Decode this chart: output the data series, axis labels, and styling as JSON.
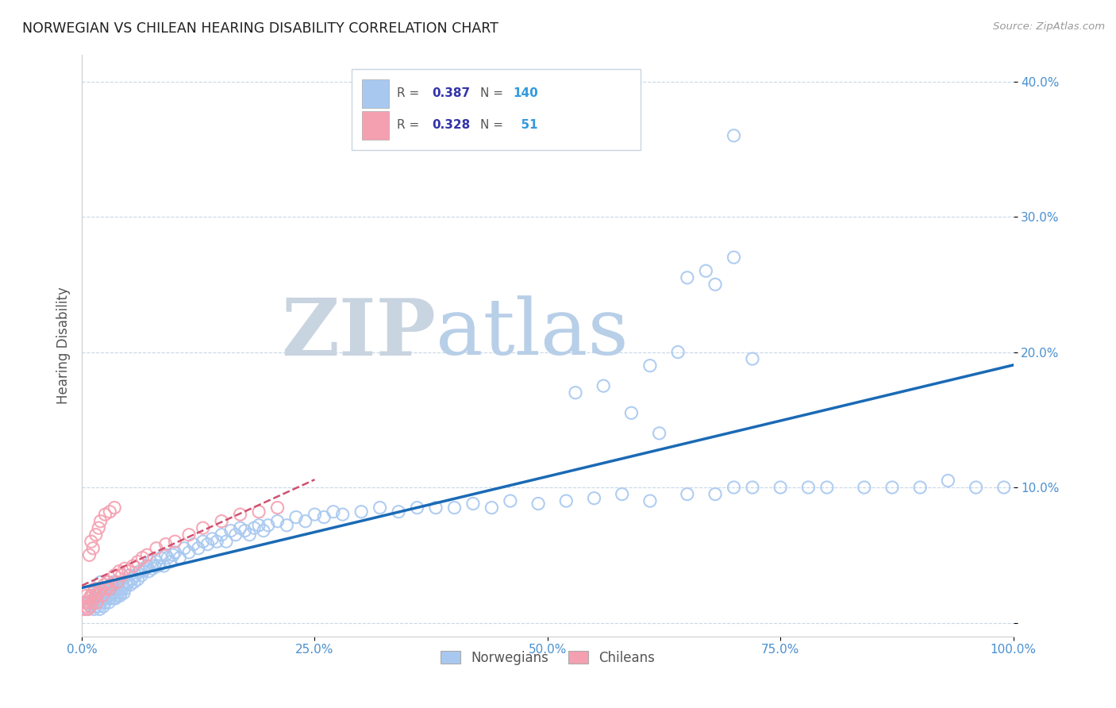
{
  "title": "NORWEGIAN VS CHILEAN HEARING DISABILITY CORRELATION CHART",
  "source": "Source: ZipAtlas.com",
  "ylabel": "Hearing Disability",
  "xlim": [
    0.0,
    1.0
  ],
  "ylim": [
    -0.01,
    0.42
  ],
  "yticks": [
    0.0,
    0.1,
    0.2,
    0.3,
    0.4
  ],
  "ytick_labels": [
    "",
    "10.0%",
    "20.0%",
    "30.0%",
    "40.0%"
  ],
  "xticks": [
    0.0,
    0.25,
    0.5,
    0.75,
    1.0
  ],
  "xtick_labels": [
    "0.0%",
    "25.0%",
    "50.0%",
    "75.0%",
    "100.0%"
  ],
  "norwegian_R": 0.387,
  "norwegian_N": 140,
  "chilean_R": 0.328,
  "chilean_N": 51,
  "norwegian_color": "#a8c8f0",
  "chilean_color": "#f5a0b0",
  "trend_norwegian_color": "#1a6ab5",
  "trend_chilean_color": "#d05070",
  "background_color": "#ffffff",
  "grid_color": "#c8d8e8",
  "title_color": "#202020",
  "axis_label_color": "#555555",
  "tick_label_color": "#4a90d0",
  "legend_R_color": "#3333aa",
  "legend_N_color": "#3399dd",
  "watermark_zip": "#c8d4e0",
  "watermark_atlas": "#b0cce0",
  "nor_x": [
    0.005,
    0.008,
    0.01,
    0.01,
    0.012,
    0.013,
    0.015,
    0.015,
    0.016,
    0.017,
    0.018,
    0.018,
    0.019,
    0.02,
    0.02,
    0.02,
    0.021,
    0.022,
    0.023,
    0.023,
    0.024,
    0.025,
    0.025,
    0.026,
    0.027,
    0.028,
    0.029,
    0.03,
    0.03,
    0.031,
    0.032,
    0.033,
    0.034,
    0.034,
    0.035,
    0.036,
    0.037,
    0.038,
    0.039,
    0.04,
    0.041,
    0.042,
    0.043,
    0.044,
    0.045,
    0.046,
    0.047,
    0.048,
    0.05,
    0.051,
    0.052,
    0.054,
    0.056,
    0.058,
    0.06,
    0.062,
    0.064,
    0.066,
    0.068,
    0.07,
    0.072,
    0.074,
    0.076,
    0.078,
    0.08,
    0.082,
    0.085,
    0.088,
    0.09,
    0.092,
    0.095,
    0.098,
    0.1,
    0.105,
    0.11,
    0.115,
    0.12,
    0.125,
    0.13,
    0.135,
    0.14,
    0.145,
    0.15,
    0.155,
    0.16,
    0.165,
    0.17,
    0.175,
    0.18,
    0.185,
    0.19,
    0.195,
    0.2,
    0.21,
    0.22,
    0.23,
    0.24,
    0.25,
    0.26,
    0.27,
    0.28,
    0.3,
    0.32,
    0.34,
    0.36,
    0.38,
    0.4,
    0.42,
    0.44,
    0.46,
    0.49,
    0.52,
    0.55,
    0.58,
    0.61,
    0.65,
    0.68,
    0.7,
    0.72,
    0.75,
    0.78,
    0.8,
    0.84,
    0.87,
    0.9,
    0.93,
    0.96,
    0.99,
    0.61,
    0.64,
    0.67,
    0.7,
    0.53,
    0.56,
    0.59,
    0.62,
    0.65,
    0.68,
    0.7,
    0.72
  ],
  "nor_y": [
    0.01,
    0.015,
    0.012,
    0.02,
    0.015,
    0.01,
    0.012,
    0.018,
    0.02,
    0.015,
    0.012,
    0.025,
    0.01,
    0.018,
    0.025,
    0.03,
    0.015,
    0.02,
    0.012,
    0.025,
    0.018,
    0.015,
    0.022,
    0.018,
    0.025,
    0.02,
    0.015,
    0.018,
    0.025,
    0.02,
    0.022,
    0.025,
    0.018,
    0.03,
    0.022,
    0.018,
    0.025,
    0.02,
    0.022,
    0.025,
    0.02,
    0.022,
    0.025,
    0.028,
    0.022,
    0.025,
    0.03,
    0.028,
    0.03,
    0.035,
    0.028,
    0.032,
    0.03,
    0.035,
    0.032,
    0.038,
    0.035,
    0.038,
    0.04,
    0.042,
    0.038,
    0.045,
    0.04,
    0.042,
    0.045,
    0.042,
    0.048,
    0.042,
    0.05,
    0.048,
    0.045,
    0.05,
    0.052,
    0.048,
    0.055,
    0.052,
    0.058,
    0.055,
    0.06,
    0.058,
    0.062,
    0.06,
    0.065,
    0.06,
    0.068,
    0.065,
    0.07,
    0.068,
    0.065,
    0.07,
    0.072,
    0.068,
    0.072,
    0.075,
    0.072,
    0.078,
    0.075,
    0.08,
    0.078,
    0.082,
    0.08,
    0.082,
    0.085,
    0.082,
    0.085,
    0.085,
    0.085,
    0.088,
    0.085,
    0.09,
    0.088,
    0.09,
    0.092,
    0.095,
    0.09,
    0.095,
    0.095,
    0.1,
    0.1,
    0.1,
    0.1,
    0.1,
    0.1,
    0.1,
    0.1,
    0.105,
    0.1,
    0.1,
    0.19,
    0.2,
    0.26,
    0.36,
    0.17,
    0.175,
    0.155,
    0.14,
    0.255,
    0.25,
    0.27,
    0.195
  ],
  "chi_x": [
    0.002,
    0.003,
    0.004,
    0.005,
    0.006,
    0.007,
    0.008,
    0.009,
    0.01,
    0.011,
    0.012,
    0.013,
    0.014,
    0.015,
    0.016,
    0.018,
    0.02,
    0.022,
    0.024,
    0.026,
    0.028,
    0.03,
    0.032,
    0.035,
    0.038,
    0.04,
    0.043,
    0.046,
    0.05,
    0.055,
    0.06,
    0.065,
    0.07,
    0.08,
    0.09,
    0.1,
    0.115,
    0.13,
    0.15,
    0.17,
    0.19,
    0.21,
    0.008,
    0.01,
    0.012,
    0.015,
    0.018,
    0.02,
    0.025,
    0.03,
    0.035
  ],
  "chi_y": [
    0.01,
    0.015,
    0.012,
    0.02,
    0.015,
    0.01,
    0.018,
    0.012,
    0.02,
    0.015,
    0.022,
    0.018,
    0.025,
    0.02,
    0.015,
    0.022,
    0.025,
    0.02,
    0.028,
    0.025,
    0.03,
    0.025,
    0.028,
    0.035,
    0.03,
    0.038,
    0.035,
    0.04,
    0.038,
    0.042,
    0.045,
    0.048,
    0.05,
    0.055,
    0.058,
    0.06,
    0.065,
    0.07,
    0.075,
    0.08,
    0.082,
    0.085,
    0.05,
    0.06,
    0.055,
    0.065,
    0.07,
    0.075,
    0.08,
    0.082,
    0.085
  ]
}
